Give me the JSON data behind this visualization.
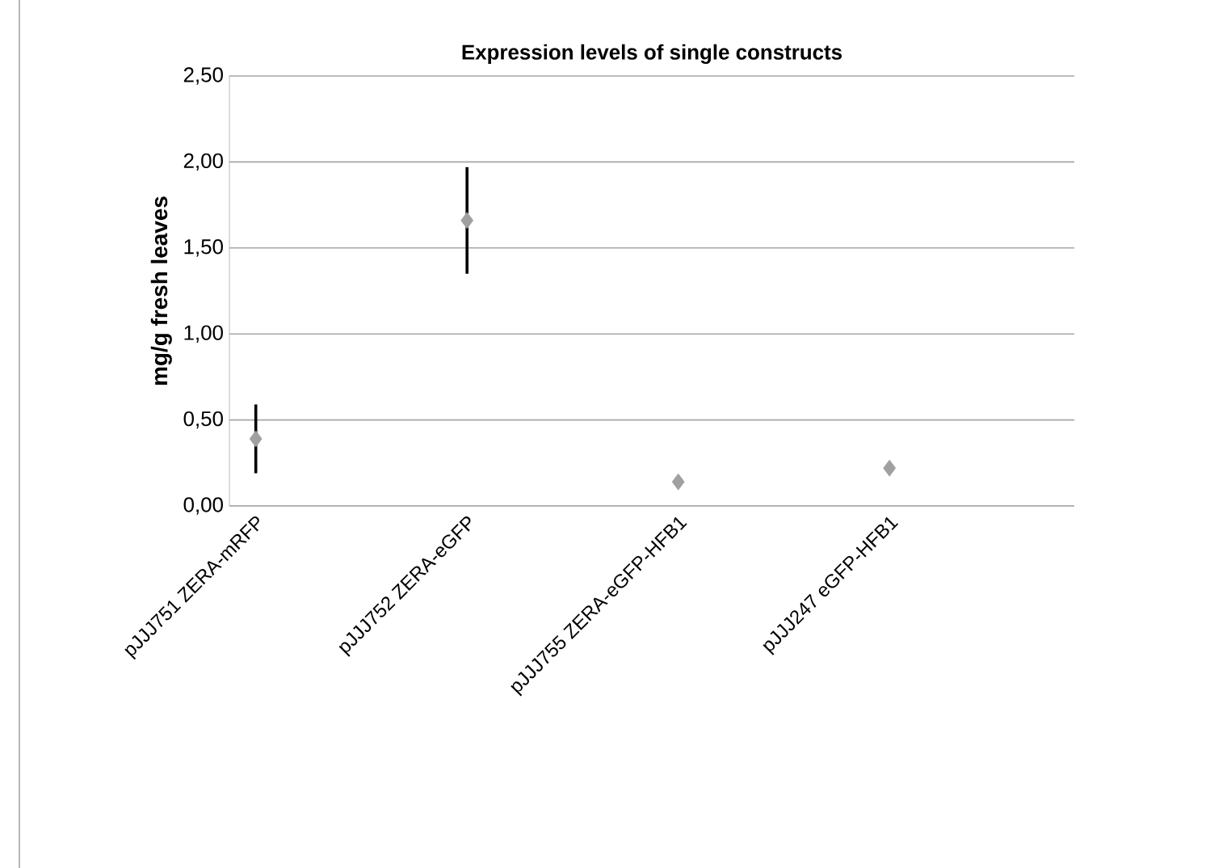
{
  "chart_data": {
    "type": "scatter",
    "title": "Expression levels of single constructs",
    "ylabel": "mg/g fresh leaves",
    "categories": [
      "pJJJ751 ZERA-mRFP",
      "pJJJ752 ZERA-eGFP",
      "pJJJ755 ZERA-eGFP-HFB1",
      "pJJJ247 eGFP-HFB1"
    ],
    "values": [
      0.39,
      1.66,
      0.14,
      0.22
    ],
    "errors": [
      0.2,
      0.31,
      null,
      null
    ],
    "color": "#a0a0a0",
    "marker": "diamond",
    "ylim": [
      0,
      2.5
    ],
    "yticks": [
      {
        "value": 0,
        "label": "0,00"
      },
      {
        "value": 0.5,
        "label": "0,50"
      },
      {
        "value": 1,
        "label": "1,00"
      },
      {
        "value": 1.5,
        "label": "1,50"
      },
      {
        "value": 2,
        "label": "2,00"
      },
      {
        "value": 2.5,
        "label": "2,50"
      }
    ],
    "grid": "y"
  }
}
